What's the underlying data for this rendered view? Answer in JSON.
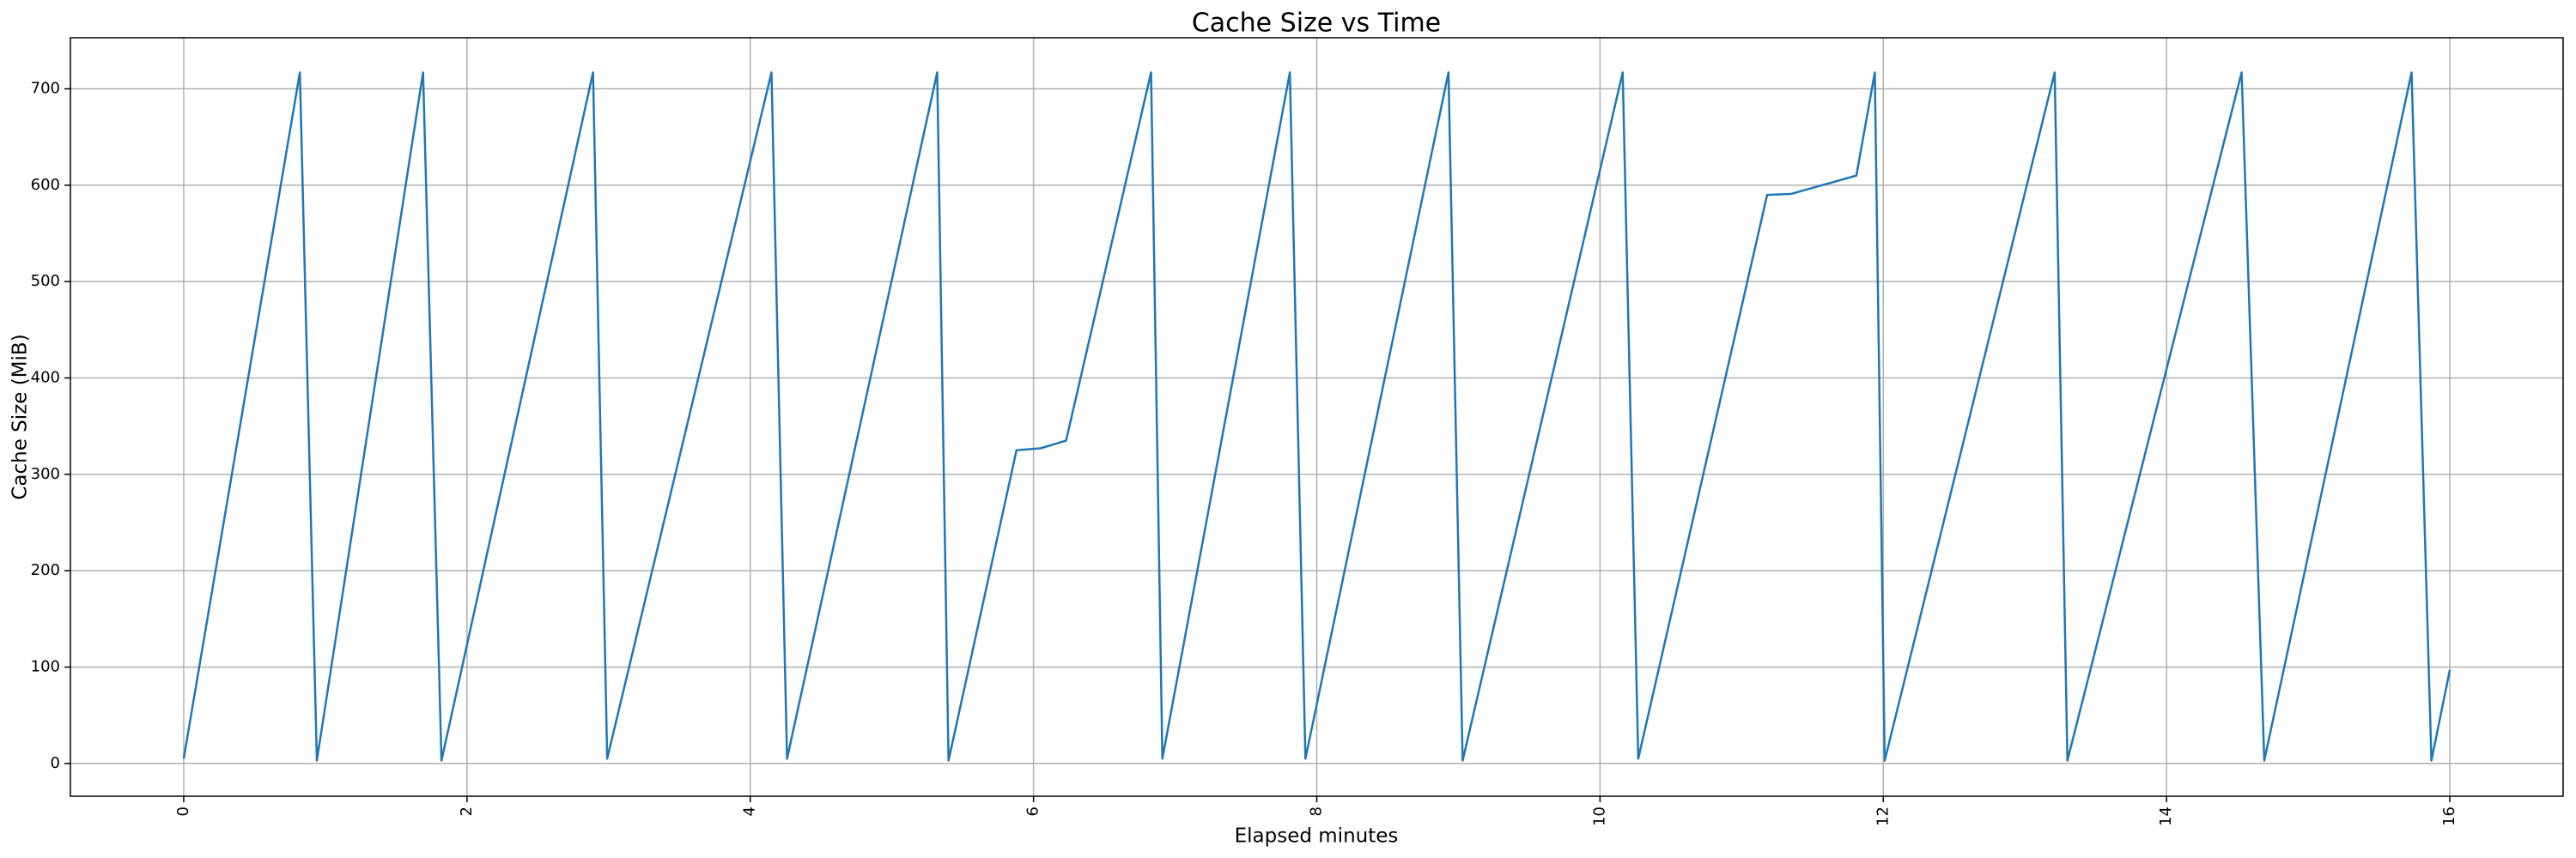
{
  "chart_data": {
    "type": "line",
    "title": "Cache Size vs Time",
    "xlabel": "Elapsed minutes",
    "ylabel": "Cache Size (MiB)",
    "x": [
      0,
      0.82,
      0.94,
      1.69,
      1.82,
      2.89,
      2.99,
      4.15,
      4.26,
      5.32,
      5.4,
      5.88,
      6.05,
      6.23,
      6.83,
      6.91,
      7.81,
      7.92,
      8.93,
      9.03,
      10.16,
      10.27,
      11.18,
      11.35,
      11.81,
      11.94,
      12.01,
      13.21,
      13.3,
      14.53,
      14.69,
      15.73,
      15.87,
      16.0
    ],
    "series": [
      {
        "color": "#1f77b4",
        "values": [
          5,
          717,
          3,
          717,
          3,
          717,
          5,
          717,
          5,
          717,
          3,
          325,
          327,
          335,
          717,
          5,
          717,
          5,
          717,
          3,
          717,
          5,
          590,
          591,
          610,
          717,
          3,
          717,
          3,
          717,
          3,
          717,
          3,
          97
        ]
      }
    ],
    "xlim": [
      -0.8,
      16.8
    ],
    "xticks": [
      0,
      2,
      4,
      6,
      8,
      10,
      12,
      14,
      16
    ],
    "ylim": [
      -34,
      753
    ],
    "yticks": [
      0,
      100,
      200,
      300,
      400,
      500,
      600,
      700
    ],
    "grid": true
  }
}
